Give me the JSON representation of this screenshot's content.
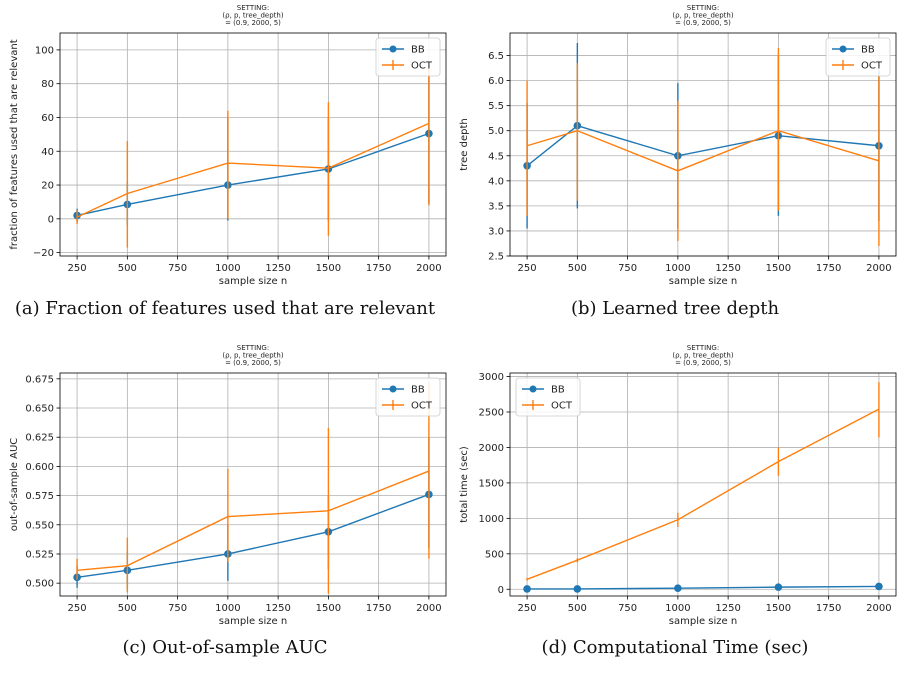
{
  "colors": {
    "bb": "#1f77b4",
    "oct": "#ff7f0e",
    "grid": "#b0b0b0"
  },
  "chart_data": [
    {
      "type": "line",
      "title_lines": [
        "SETTING:",
        "(ρ, p, tree_depth)",
        "= (0.9, 2000, 5)"
      ],
      "xlabel": "sample size n",
      "ylabel": "fraction of features used that are relevant",
      "caption": "(a) Fraction of features used that are relevant",
      "x": [
        250,
        500,
        1000,
        1500,
        2000
      ],
      "xticks": [
        "250",
        "500",
        "750",
        "1000",
        "1250",
        "1500",
        "1750",
        "2000"
      ],
      "xtick_values": [
        250,
        500,
        750,
        1000,
        1250,
        1500,
        1750,
        2000
      ],
      "yticks": [
        "−20",
        "0",
        "20",
        "40",
        "60",
        "80",
        "100"
      ],
      "ytick_values": [
        -20,
        0,
        20,
        40,
        60,
        80,
        100
      ],
      "xlim": [
        165,
        2085
      ],
      "ylim": [
        -22,
        110
      ],
      "legend": "top-right",
      "grid": true,
      "series": [
        {
          "name": "BB",
          "values": [
            2,
            8.5,
            20,
            29.5,
            50.5
          ],
          "err_low": [
            -2,
            -4,
            -1,
            -1,
            9
          ],
          "err_high": [
            6,
            22,
            60,
            60,
            92
          ],
          "marker": true
        },
        {
          "name": "OCT",
          "values": [
            1,
            15,
            33,
            30,
            56.5
          ],
          "err_low": [
            -3,
            -17,
            0,
            -10,
            8
          ],
          "err_high": [
            5,
            46,
            64,
            69,
            90
          ],
          "marker": false
        }
      ]
    },
    {
      "type": "line",
      "title_lines": [
        "SETTING:",
        "(ρ, p, tree_depth)",
        "= (0.9, 2000, 5)"
      ],
      "xlabel": "sample size n",
      "ylabel": "tree depth",
      "caption": "(b) Learned tree depth",
      "x": [
        250,
        500,
        1000,
        1500,
        2000
      ],
      "xticks": [
        "250",
        "500",
        "750",
        "1000",
        "1250",
        "1500",
        "1750",
        "2000"
      ],
      "xtick_values": [
        250,
        500,
        750,
        1000,
        1250,
        1500,
        1750,
        2000
      ],
      "yticks": [
        "2.5",
        "3.0",
        "3.5",
        "4.0",
        "4.5",
        "5.0",
        "5.5",
        "6.0",
        "6.5"
      ],
      "ytick_values": [
        2.5,
        3.0,
        3.5,
        4.0,
        4.5,
        5.0,
        5.5,
        6.0,
        6.5
      ],
      "xlim": [
        165,
        2085
      ],
      "ylim": [
        2.5,
        6.95
      ],
      "legend": "top-right",
      "grid": true,
      "series": [
        {
          "name": "BB",
          "values": [
            4.3,
            5.1,
            4.5,
            4.9,
            4.7
          ],
          "err_low": [
            3.05,
            3.45,
            3.05,
            3.3,
            3.2
          ],
          "err_high": [
            5.55,
            6.75,
            5.95,
            6.5,
            6.2
          ],
          "marker": true
        },
        {
          "name": "OCT",
          "values": [
            4.7,
            5.0,
            4.2,
            5.0,
            4.4
          ],
          "err_low": [
            3.3,
            3.6,
            2.8,
            3.4,
            2.7
          ],
          "err_high": [
            6.0,
            6.35,
            5.6,
            6.65,
            6.1
          ],
          "marker": false
        }
      ]
    },
    {
      "type": "line",
      "title_lines": [
        "SETTING:",
        "(ρ, p, tree_depth)",
        "= (0.9, 2000, 5)"
      ],
      "xlabel": "sample size n",
      "ylabel": "out-of-sample AUC",
      "caption": "(c) Out-of-sample AUC",
      "x": [
        250,
        500,
        1000,
        1500,
        2000
      ],
      "xticks": [
        "250",
        "500",
        "750",
        "1000",
        "1250",
        "1500",
        "1750",
        "2000"
      ],
      "xtick_values": [
        250,
        500,
        750,
        1000,
        1250,
        1500,
        1750,
        2000
      ],
      "yticks": [
        "0.500",
        "0.525",
        "0.550",
        "0.575",
        "0.600",
        "0.625",
        "0.650",
        "0.675"
      ],
      "ytick_values": [
        0.5,
        0.525,
        0.55,
        0.575,
        0.6,
        0.625,
        0.65,
        0.675
      ],
      "xlim": [
        165,
        2085
      ],
      "ylim": [
        0.489,
        0.68
      ],
      "legend": "top-right",
      "grid": true,
      "series": [
        {
          "name": "BB",
          "values": [
            0.505,
            0.511,
            0.525,
            0.544,
            0.576
          ],
          "err_low": [
            0.496,
            0.495,
            0.502,
            0.512,
            0.53
          ],
          "err_high": [
            0.515,
            0.527,
            0.55,
            0.575,
            0.625
          ],
          "marker": true
        },
        {
          "name": "OCT",
          "values": [
            0.511,
            0.515,
            0.557,
            0.562,
            0.596
          ],
          "err_low": [
            0.503,
            0.492,
            0.518,
            0.491,
            0.521
          ],
          "err_high": [
            0.521,
            0.539,
            0.598,
            0.633,
            0.672
          ],
          "marker": false
        }
      ]
    },
    {
      "type": "line",
      "title_lines": [
        "SETTING:",
        "(ρ, p, tree_depth)",
        "= (0.9, 2000, 5)"
      ],
      "xlabel": "sample size n",
      "ylabel": "total time (sec)",
      "caption": "(d) Computational Time (sec)",
      "x": [
        250,
        500,
        1000,
        1500,
        2000
      ],
      "xticks": [
        "250",
        "500",
        "750",
        "1000",
        "1250",
        "1500",
        "1750",
        "2000"
      ],
      "xtick_values": [
        250,
        500,
        750,
        1000,
        1250,
        1500,
        1750,
        2000
      ],
      "yticks": [
        "0",
        "500",
        "1000",
        "1500",
        "2000",
        "2500",
        "3000"
      ],
      "ytick_values": [
        0,
        500,
        1000,
        1500,
        2000,
        2500,
        3000
      ],
      "xlim": [
        165,
        2085
      ],
      "ylim": [
        -95,
        3050
      ],
      "legend": "top-left",
      "grid": true,
      "series": [
        {
          "name": "BB",
          "values": [
            5,
            5,
            15,
            30,
            40
          ],
          "err_low": [
            0,
            0,
            5,
            15,
            20
          ],
          "err_high": [
            10,
            10,
            25,
            45,
            60
          ],
          "marker": true
        },
        {
          "name": "OCT",
          "values": [
            140,
            410,
            980,
            1800,
            2540
          ],
          "err_low": [
            120,
            380,
            880,
            1600,
            2140
          ],
          "err_high": [
            160,
            440,
            1080,
            2000,
            2920
          ],
          "marker": false
        }
      ]
    }
  ]
}
